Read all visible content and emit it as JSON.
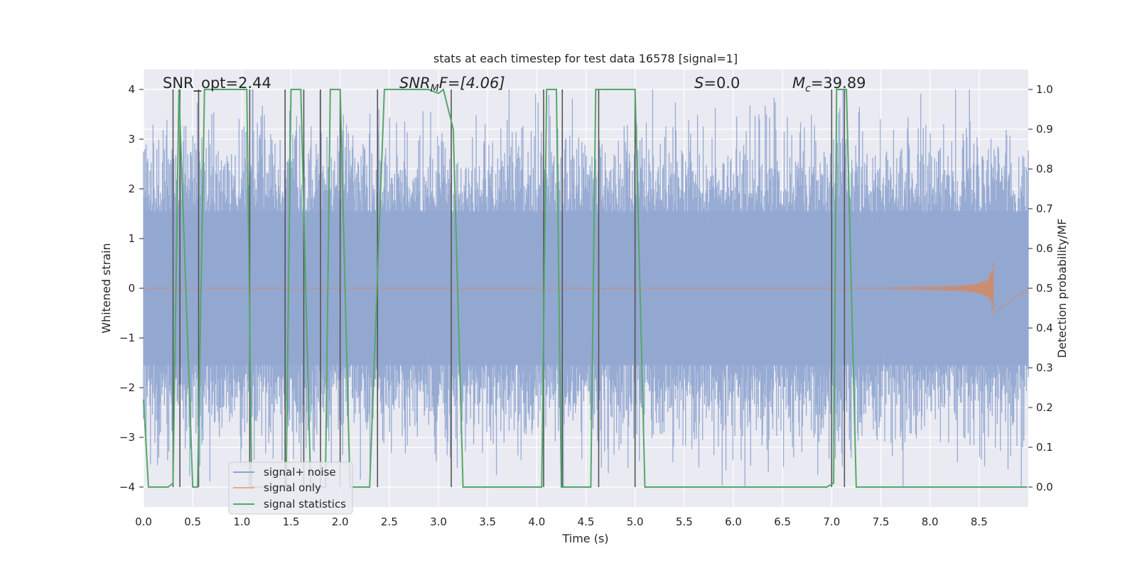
{
  "chart_data": {
    "type": "line",
    "title": "stats at each timestep for test data 16578 [signal=1]",
    "xlabel": "Time (s)",
    "ylabel": "Whitened strain",
    "y2label": "Detection probability/MF",
    "xlim": [
      0,
      9.0
    ],
    "ylim": [
      -4.4,
      4.4
    ],
    "y2lim": [
      -0.05,
      1.05
    ],
    "xticks": [
      0.0,
      0.5,
      1.0,
      1.5,
      2.0,
      2.5,
      3.0,
      3.5,
      4.0,
      4.5,
      5.0,
      5.5,
      6.0,
      6.5,
      7.0,
      7.5,
      8.0,
      8.5
    ],
    "xtick_labels": [
      "0.0",
      "0.5",
      "1.0",
      "1.5",
      "2.0",
      "2.5",
      "3.0",
      "3.5",
      "4.0",
      "4.5",
      "5.0",
      "5.5",
      "6.0",
      "6.5",
      "7.0",
      "7.5",
      "8.0",
      "8.5"
    ],
    "yticks": [
      -4,
      -3,
      -2,
      -1,
      0,
      1,
      2,
      3,
      4
    ],
    "ytick_labels": [
      "−4",
      "−3",
      "−2",
      "−1",
      "0",
      "1",
      "2",
      "3",
      "4"
    ],
    "y2ticks": [
      0.0,
      0.1,
      0.2,
      0.3,
      0.4,
      0.5,
      0.6,
      0.7,
      0.8,
      0.9,
      1.0
    ],
    "y2tick_labels": [
      "0.0",
      "0.1",
      "0.2",
      "0.3",
      "0.4",
      "0.5",
      "0.6",
      "0.7",
      "0.8",
      "0.9",
      "1.0"
    ],
    "annotations": {
      "snr_opt": "SNR_opt=2.44",
      "snr_mf_prefix": "SNR",
      "snr_mf_sub": "M",
      "snr_mf_suffix": "F=[4.06]",
      "s_prefix": "S",
      "s_suffix": "=0.0",
      "mc_prefix": "M",
      "mc_sub": "c",
      "mc_suffix": "=39.89"
    },
    "legend": {
      "location": "lower-left",
      "entries": [
        {
          "label": "signal+ noise",
          "color": "#8fa4cc"
        },
        {
          "label": "signal only",
          "color": "#e8a98c"
        },
        {
          "label": "signal statistics",
          "color": "#55a868"
        }
      ]
    },
    "noise": {
      "name": "signal+ noise",
      "color": "#92a8d1",
      "samples": 1400,
      "envelope": 2.6
    },
    "signal_only": {
      "name": "signal only",
      "color": "#dd8452",
      "chirp_end_s": 8.65,
      "peak_amplitude": 0.75
    },
    "statistics": {
      "name": "signal statistics",
      "color": "#55a868",
      "axis": "right",
      "x": [
        0.0,
        0.05,
        0.25,
        0.3,
        0.36,
        0.5,
        0.55,
        0.62,
        1.05,
        1.1,
        1.45,
        1.5,
        1.6,
        1.7,
        1.85,
        1.9,
        2.0,
        2.1,
        2.3,
        2.45,
        2.9,
        3.0,
        3.05,
        3.15,
        3.25,
        4.05,
        4.1,
        4.2,
        4.25,
        4.3,
        4.4,
        4.55,
        4.6,
        4.75,
        5.0,
        5.1,
        6.95,
        7.02,
        7.05,
        7.15,
        7.25,
        8.99
      ],
      "y": [
        0.22,
        0.0,
        0.0,
        0.01,
        1.0,
        0.0,
        0.0,
        1.0,
        1.0,
        0.0,
        0.0,
        1.0,
        1.0,
        0.0,
        0.0,
        1.0,
        1.0,
        0.0,
        0.0,
        1.0,
        1.0,
        0.99,
        1.0,
        0.9,
        0.0,
        0.0,
        1.0,
        1.0,
        0.0,
        0.0,
        0.0,
        0.0,
        1.0,
        1.0,
        1.0,
        0.0,
        0.0,
        0.01,
        1.0,
        1.0,
        0.0,
        0.0
      ]
    },
    "vlines": {
      "color": "#555555",
      "x": [
        0.3,
        0.37,
        0.56,
        1.08,
        1.44,
        1.63,
        1.8,
        2.0,
        2.38,
        3.13,
        4.07,
        4.26,
        4.63,
        5.0,
        7.0,
        7.13
      ]
    }
  }
}
